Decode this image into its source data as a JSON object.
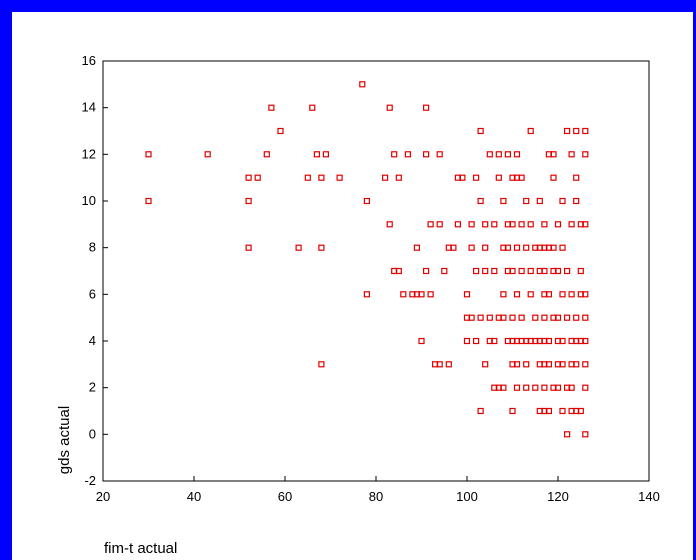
{
  "chart_data": {
    "type": "scatter",
    "title": "",
    "xlabel": "fim-t actual",
    "ylabel": "gds actual",
    "xlim": [
      20,
      140
    ],
    "ylim": [
      -2,
      16
    ],
    "xticks": [
      20,
      40,
      60,
      80,
      100,
      120,
      140
    ],
    "yticks": [
      -2,
      0,
      2,
      4,
      6,
      8,
      10,
      12,
      14,
      16
    ],
    "grid": false,
    "marker": "hollow-square",
    "colors": {
      "marker": "#e00000",
      "frame": "#0000ff",
      "axis": "#000000"
    },
    "series": [
      {
        "points": [
          [
            30,
            12
          ],
          [
            30,
            10
          ],
          [
            43,
            12
          ],
          [
            52,
            11
          ],
          [
            52,
            10
          ],
          [
            52,
            8
          ],
          [
            54,
            11
          ],
          [
            56,
            12
          ],
          [
            57,
            14
          ],
          [
            59,
            13
          ],
          [
            63,
            8
          ],
          [
            65,
            11
          ],
          [
            66,
            14
          ],
          [
            67,
            12
          ],
          [
            68,
            11
          ],
          [
            68,
            8
          ],
          [
            68,
            3
          ],
          [
            69,
            12
          ],
          [
            72,
            11
          ],
          [
            77,
            15
          ],
          [
            78,
            10
          ],
          [
            78,
            6
          ],
          [
            82,
            11
          ],
          [
            83,
            14
          ],
          [
            83,
            9
          ],
          [
            84,
            7
          ],
          [
            84,
            12
          ],
          [
            85,
            11
          ],
          [
            85,
            7
          ],
          [
            86,
            6
          ],
          [
            87,
            12
          ],
          [
            88,
            6
          ],
          [
            89,
            6
          ],
          [
            89,
            8
          ],
          [
            90,
            4
          ],
          [
            90,
            6
          ],
          [
            91,
            14
          ],
          [
            91,
            7
          ],
          [
            91,
            12
          ],
          [
            92,
            9
          ],
          [
            92,
            6
          ],
          [
            93,
            3
          ],
          [
            94,
            9
          ],
          [
            94,
            3
          ],
          [
            94,
            12
          ],
          [
            95,
            7
          ],
          [
            96,
            3
          ],
          [
            96,
            8
          ],
          [
            97,
            8
          ],
          [
            98,
            9
          ],
          [
            98,
            11
          ],
          [
            99,
            11
          ],
          [
            100,
            5
          ],
          [
            100,
            4
          ],
          [
            100,
            6
          ],
          [
            101,
            5
          ],
          [
            101,
            9
          ],
          [
            101,
            8
          ],
          [
            102,
            7
          ],
          [
            102,
            4
          ],
          [
            102,
            11
          ],
          [
            103,
            1
          ],
          [
            103,
            5
          ],
          [
            103,
            13
          ],
          [
            103,
            10
          ],
          [
            104,
            8
          ],
          [
            104,
            3
          ],
          [
            104,
            7
          ],
          [
            104,
            9
          ],
          [
            105,
            12
          ],
          [
            105,
            4
          ],
          [
            105,
            5
          ],
          [
            106,
            7
          ],
          [
            106,
            2
          ],
          [
            106,
            4
          ],
          [
            106,
            9
          ],
          [
            107,
            5
          ],
          [
            107,
            2
          ],
          [
            107,
            11
          ],
          [
            107,
            12
          ],
          [
            108,
            2
          ],
          [
            108,
            6
          ],
          [
            108,
            8
          ],
          [
            108,
            5
          ],
          [
            108,
            10
          ],
          [
            109,
            7
          ],
          [
            109,
            9
          ],
          [
            109,
            4
          ],
          [
            109,
            12
          ],
          [
            109,
            8
          ],
          [
            110,
            1
          ],
          [
            110,
            4
          ],
          [
            110,
            3
          ],
          [
            110,
            5
          ],
          [
            110,
            7
          ],
          [
            110,
            9
          ],
          [
            110,
            11
          ],
          [
            111,
            2
          ],
          [
            111,
            3
          ],
          [
            111,
            4
          ],
          [
            111,
            6
          ],
          [
            111,
            8
          ],
          [
            111,
            11
          ],
          [
            111,
            12
          ],
          [
            112,
            9
          ],
          [
            112,
            5
          ],
          [
            112,
            4
          ],
          [
            112,
            7
          ],
          [
            112,
            11
          ],
          [
            113,
            4
          ],
          [
            113,
            3
          ],
          [
            113,
            8
          ],
          [
            113,
            10
          ],
          [
            113,
            2
          ],
          [
            114,
            13
          ],
          [
            114,
            4
          ],
          [
            114,
            6
          ],
          [
            114,
            7
          ],
          [
            114,
            9
          ],
          [
            115,
            2
          ],
          [
            115,
            4
          ],
          [
            115,
            5
          ],
          [
            115,
            8
          ],
          [
            116,
            1
          ],
          [
            116,
            7
          ],
          [
            116,
            3
          ],
          [
            116,
            4
          ],
          [
            116,
            8
          ],
          [
            116,
            10
          ],
          [
            117,
            3
          ],
          [
            117,
            1
          ],
          [
            117,
            2
          ],
          [
            117,
            4
          ],
          [
            117,
            5
          ],
          [
            117,
            6
          ],
          [
            117,
            7
          ],
          [
            117,
            8
          ],
          [
            117,
            9
          ],
          [
            118,
            12
          ],
          [
            118,
            1
          ],
          [
            118,
            3
          ],
          [
            118,
            4
          ],
          [
            118,
            6
          ],
          [
            118,
            8
          ],
          [
            119,
            2
          ],
          [
            119,
            5
          ],
          [
            119,
            7
          ],
          [
            119,
            8
          ],
          [
            119,
            11
          ],
          [
            119,
            12
          ],
          [
            120,
            2
          ],
          [
            120,
            3
          ],
          [
            120,
            4
          ],
          [
            120,
            5
          ],
          [
            120,
            7
          ],
          [
            120,
            9
          ],
          [
            121,
            1
          ],
          [
            121,
            3
          ],
          [
            121,
            4
          ],
          [
            121,
            6
          ],
          [
            121,
            8
          ],
          [
            121,
            10
          ],
          [
            122,
            0
          ],
          [
            122,
            2
          ],
          [
            122,
            5
          ],
          [
            122,
            7
          ],
          [
            122,
            13
          ],
          [
            123,
            4
          ],
          [
            123,
            2
          ],
          [
            123,
            1
          ],
          [
            123,
            3
          ],
          [
            123,
            6
          ],
          [
            123,
            9
          ],
          [
            123,
            12
          ],
          [
            124,
            13
          ],
          [
            124,
            1
          ],
          [
            124,
            3
          ],
          [
            124,
            4
          ],
          [
            124,
            5
          ],
          [
            124,
            10
          ],
          [
            124,
            11
          ],
          [
            125,
            7
          ],
          [
            125,
            1
          ],
          [
            125,
            9
          ],
          [
            125,
            4
          ],
          [
            125,
            6
          ],
          [
            126,
            0
          ],
          [
            126,
            2
          ],
          [
            126,
            3
          ],
          [
            126,
            4
          ],
          [
            126,
            5
          ],
          [
            126,
            6
          ],
          [
            126,
            9
          ],
          [
            126,
            12
          ],
          [
            126,
            13
          ]
        ]
      }
    ]
  }
}
